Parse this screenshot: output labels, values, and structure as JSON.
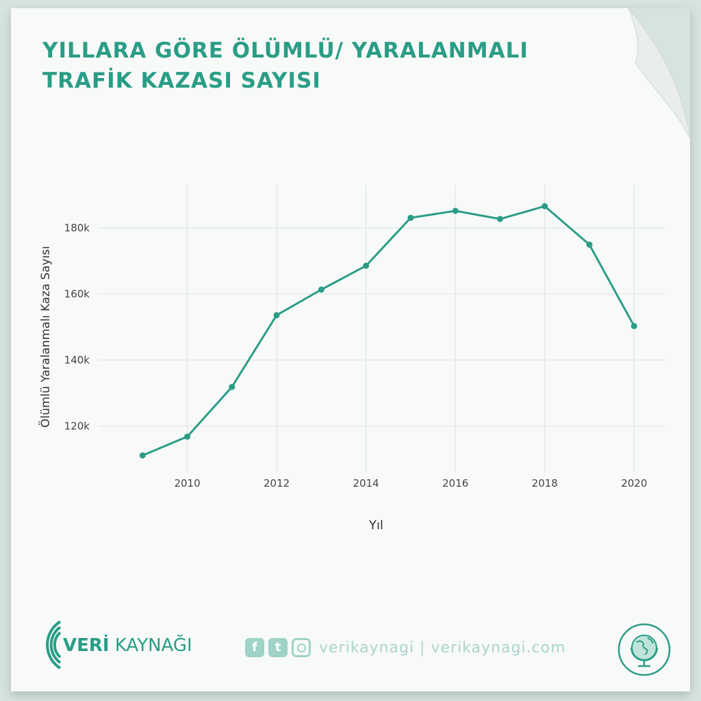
{
  "header": {
    "title_line1": "YILLARA GÖRE ÖLÜMLÜ/ YARALANMALI",
    "title_line2": "TRAFİK KAZASI SAYISI"
  },
  "chart_data": {
    "type": "line",
    "title": "YILLARA GÖRE ÖLÜMLÜ/ YARALANMALI TRAFİK KAZASI SAYISI",
    "xlabel": "Yıl",
    "ylabel": "Ölümlü Yaralanmalı Kaza Sayısı",
    "x": [
      2009,
      2010,
      2011,
      2012,
      2013,
      2014,
      2015,
      2016,
      2017,
      2018,
      2019,
      2020
    ],
    "series": [
      {
        "values": [
          111121,
          116804,
          131845,
          153552,
          161306,
          168512,
          183011,
          185128,
          182669,
          186532,
          174896,
          150275
        ]
      }
    ],
    "xlim": [
      2008.0,
      2020.7
    ],
    "ylim": [
      106000,
      193000
    ],
    "xticks": [
      2010,
      2012,
      2014,
      2016,
      2018,
      2020
    ],
    "xtick_labels": [
      "2010",
      "2012",
      "2014",
      "2016",
      "2018",
      "2020"
    ],
    "yticks": [
      120000,
      140000,
      160000,
      180000
    ],
    "ytick_labels": [
      "120k",
      "140k",
      "160k",
      "180k"
    ],
    "grid": true,
    "line_color": "#2a9d86"
  },
  "footer": {
    "brand_bold": "VERİ",
    "brand_rest": " KAYNAĞI",
    "social_text": "verikaynagi | verikaynagi.com",
    "facebook_glyph": "f",
    "twitter_glyph": "t",
    "icons": [
      "facebook-icon",
      "twitter-icon",
      "instagram-icon",
      "globe-icon"
    ]
  },
  "colors": {
    "accent": "#2a9d86",
    "accent_light": "#9fd3c7",
    "background": "#d7e3e0",
    "paper": "#f8f9f9"
  }
}
